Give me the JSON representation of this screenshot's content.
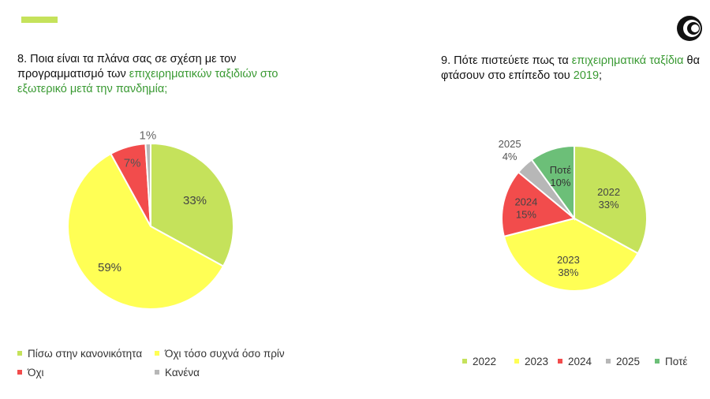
{
  "header": {
    "accent_color": "#c5e25b",
    "logo_icon": "circle-swirl-logo"
  },
  "q1": {
    "number": "8.",
    "title_plain_1": "Ποια είναι τα πλάνα σας σε σχέση με τον προγραμματισμό των",
    "title_highlight": "επιχειρηματικών ταξιδιών στο εξωτερικό μετά την πανδημία;"
  },
  "q2": {
    "number": "9.",
    "title_plain_1": "Πότε πιστεύετε πως τα",
    "title_highlight_1": "επιχειρηματικά ταξίδια",
    "title_plain_2": "θα φτάσουν στο επίπεδο του",
    "title_highlight_2": "2019",
    "title_plain_3": ";"
  },
  "chart_data": [
    {
      "type": "pie",
      "title": "8. Ποια είναι τα πλάνα σας σε σχέση με τον προγραμματισμό των επιχειρηματικών ταξιδιών στο εξωτερικό μετά την πανδημία;",
      "categories": [
        "Πίσω στην κανονικότητα",
        "Όχι τόσο συχνά όσο πρίν",
        "Όχι",
        "Κανένα"
      ],
      "values": [
        33,
        59,
        7,
        1
      ],
      "labels": [
        "33%",
        "59%",
        "7%",
        "1%"
      ],
      "colors": [
        "#c5e25b",
        "#ffff55",
        "#f24c4c",
        "#b7b7b7"
      ],
      "legend_position": "bottom"
    },
    {
      "type": "pie",
      "title": "9. Πότε πιστεύετε πως τα επιχειρηματικά ταξίδια θα φτάσουν στο επίπεδο του 2019;",
      "categories": [
        "2022",
        "2023",
        "2024",
        "2025",
        "Ποτέ"
      ],
      "values": [
        33,
        38,
        15,
        4,
        10
      ],
      "labels": [
        [
          "2022",
          "33%"
        ],
        [
          "2023",
          "38%"
        ],
        [
          "2024",
          "15%"
        ],
        [
          "2025",
          "4%"
        ],
        [
          "Ποτέ",
          "10%"
        ]
      ],
      "colors": [
        "#c5e25b",
        "#ffff55",
        "#f24c4c",
        "#b7b7b7",
        "#6cbf78"
      ],
      "legend_position": "bottom"
    }
  ]
}
